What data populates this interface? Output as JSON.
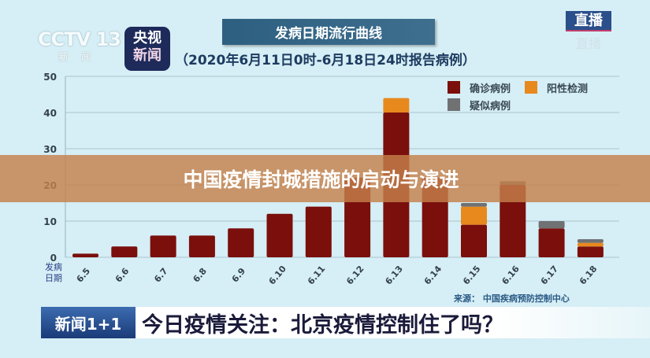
{
  "header": {
    "cctv_logo": "CCTV 13",
    "cctv_logo_sub": "新闻",
    "app_logo_line1": "央视",
    "app_logo_line2": "新闻",
    "title": "发病日期流行曲线",
    "subtitle": "（2020年6月11日0时-6月18日24时报告病例）",
    "live_badge": "直播"
  },
  "overlay": {
    "title": "中国疫情封城措施的启动与演进"
  },
  "ticker": {
    "logo": "新闻1+1",
    "headline": "今日疫情关注：北京疫情控制住了吗？"
  },
  "source": "来源：  中国疾病预防控制中心",
  "x_axis_label": [
    "发病",
    "日期"
  ],
  "colors": {
    "confirmed": "#7a0f0c",
    "positive_test": "#e8891e",
    "suspected": "#6f7173",
    "background": "#d6eef5",
    "overlay": "#c4804a"
  },
  "legend": [
    {
      "label": "确诊病例",
      "color": "#7a0f0c"
    },
    {
      "label": "阳性检测",
      "color": "#e8891e"
    },
    {
      "label": "疑似病例",
      "color": "#6f7173"
    }
  ],
  "chart_data": {
    "type": "bar",
    "stacked": true,
    "title": "发病日期流行曲线",
    "subtitle": "（2020年6月11日0时-6月18日24时报告病例）",
    "xlabel": "发病日期",
    "ylabel": "",
    "ylim": [
      0,
      50
    ],
    "yticks": [
      0,
      10,
      20,
      30,
      40,
      50
    ],
    "grid": true,
    "legend_position": "top-right",
    "categories": [
      "6.5",
      "6.6",
      "6.7",
      "6.8",
      "6.9",
      "6.10",
      "6.11",
      "6.12",
      "6.13",
      "6.14",
      "6.15",
      "6.16",
      "6.17",
      "6.18"
    ],
    "series": [
      {
        "name": "确诊病例",
        "color": "#7a0f0c",
        "values": [
          1,
          3,
          6,
          6,
          8,
          12,
          14,
          22,
          40,
          22,
          9,
          20,
          8,
          3
        ]
      },
      {
        "name": "阳性检测",
        "color": "#e8891e",
        "values": [
          0,
          0,
          0,
          0,
          0,
          0,
          0,
          0,
          4,
          0,
          5,
          0,
          0,
          1
        ]
      },
      {
        "name": "疑似病例",
        "color": "#6f7173",
        "values": [
          0,
          0,
          0,
          0,
          0,
          0,
          0,
          0,
          0,
          0,
          1,
          1,
          2,
          1
        ]
      }
    ],
    "source": "来源：中国疾病预防控制中心"
  }
}
